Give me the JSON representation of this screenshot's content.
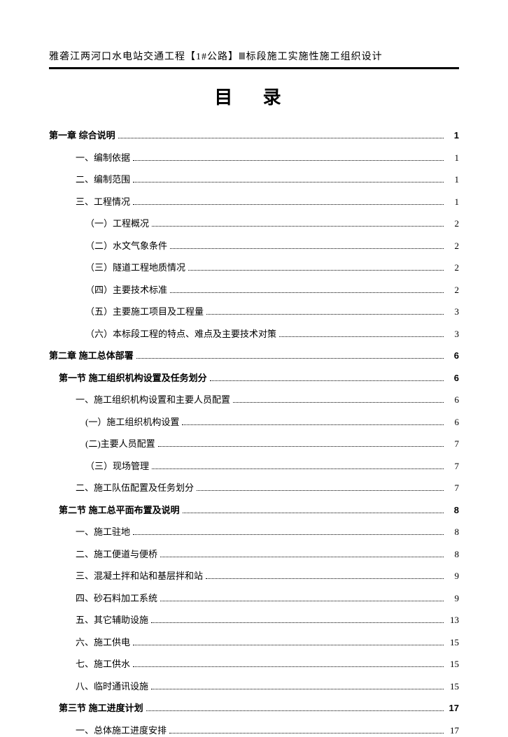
{
  "header": "雅砻江两河口水电站交通工程【1#公路】Ⅲ标段施工实施性施工组织设计",
  "title": "目 录",
  "entries": [
    {
      "label": "第一章  综合说明",
      "page": "1",
      "level": 0,
      "bold": true
    },
    {
      "label": "一、编制依据",
      "page": "1",
      "level": 2,
      "bold": false
    },
    {
      "label": "二、编制范围",
      "page": "1",
      "level": 2,
      "bold": false
    },
    {
      "label": "三、工程情况",
      "page": "1",
      "level": 2,
      "bold": false
    },
    {
      "label": "（一）工程概况",
      "page": "2",
      "level": 3,
      "bold": false
    },
    {
      "label": "（二）水文气象条件",
      "page": "2",
      "level": 3,
      "bold": false
    },
    {
      "label": "（三）隧道工程地质情况",
      "page": "2",
      "level": 3,
      "bold": false
    },
    {
      "label": "（四）主要技术标准",
      "page": "2",
      "level": 3,
      "bold": false
    },
    {
      "label": "（五）主要施工项目及工程量",
      "page": "3",
      "level": 3,
      "bold": false
    },
    {
      "label": "（六）本标段工程的特点、难点及主要技术对策",
      "page": "3",
      "level": 3,
      "bold": false
    },
    {
      "label": "第二章  施工总体部署",
      "page": "6",
      "level": 0,
      "bold": true
    },
    {
      "label": "第一节  施工组织机构设置及任务划分",
      "page": "6",
      "level": 1,
      "bold": true
    },
    {
      "label": "一、施工组织机构设置和主要人员配置",
      "page": "6",
      "level": 2,
      "bold": false
    },
    {
      "label": "(一）施工组织机构设置",
      "page": "6",
      "level": 3,
      "bold": false
    },
    {
      "label": "(二)主要人员配置",
      "page": "7",
      "level": 3,
      "bold": false
    },
    {
      "label": "（三）现场管理",
      "page": "7",
      "level": 3,
      "bold": false
    },
    {
      "label": "二、施工队伍配置及任务划分",
      "page": "7",
      "level": 2,
      "bold": false
    },
    {
      "label": "第二节  施工总平面布置及说明",
      "page": "8",
      "level": 1,
      "bold": true
    },
    {
      "label": "一、施工驻地",
      "page": "8",
      "level": 2,
      "bold": false
    },
    {
      "label": "二、施工便道与便桥",
      "page": "8",
      "level": 2,
      "bold": false
    },
    {
      "label": "三、混凝土拌和站和基层拌和站",
      "page": "9",
      "level": 2,
      "bold": false
    },
    {
      "label": "四、砂石料加工系统",
      "page": "9",
      "level": 2,
      "bold": false
    },
    {
      "label": "五、其它辅助设施",
      "page": "13",
      "level": 2,
      "bold": false
    },
    {
      "label": "六、施工供电",
      "page": "15",
      "level": 2,
      "bold": false
    },
    {
      "label": "七、施工供水",
      "page": "15",
      "level": 2,
      "bold": false
    },
    {
      "label": "八、临时通讯设施",
      "page": "15",
      "level": 2,
      "bold": false
    },
    {
      "label": "第三节  施工进度计划",
      "page": "17",
      "level": 1,
      "bold": true
    },
    {
      "label": "一、总体施工进度安排",
      "page": "17",
      "level": 2,
      "bold": false
    }
  ]
}
